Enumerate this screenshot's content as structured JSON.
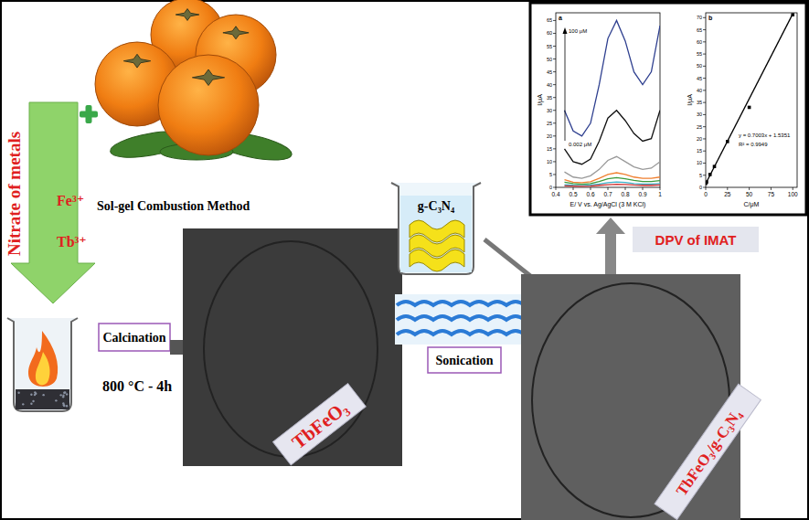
{
  "nodes": {
    "precursor_label": "Nitrate of metals",
    "ions": [
      "Fe³⁺",
      "Tb³⁺"
    ],
    "method": "Sol-gel Combustion Method",
    "step1": {
      "label": "Calcination",
      "condition": "800 °C - 4h"
    },
    "product1": "TbFeO₃",
    "additive": "g-C₃N₄",
    "step2": "Sonication",
    "product2": "TbFeO₃/g-C₃N₄",
    "application": "DPV of IMAT"
  },
  "chart_data": [
    {
      "type": "line",
      "title": "a",
      "x_label": "E/ V vs. Ag/AgCl (3 M KCl)",
      "y_label": "I/μA",
      "x": [
        0.45,
        0.5,
        0.55,
        0.6,
        0.65,
        0.7,
        0.75,
        0.8,
        0.85,
        0.9,
        0.95,
        1
      ],
      "xlim": [
        0.4,
        1
      ],
      "xticks": [
        0.4,
        0.5,
        0.6,
        0.7,
        0.8,
        0.9,
        1
      ],
      "ylim": [
        0,
        68
      ],
      "yticks": [
        0,
        5,
        10,
        15,
        20,
        25,
        30,
        35,
        40,
        45,
        50,
        55,
        60,
        65
      ],
      "annotations": [
        "100 μM",
        "0.002 μM"
      ],
      "series": [
        {
          "color": "#2e3f8f",
          "values": [
            30,
            22,
            20,
            25,
            40,
            58,
            65,
            57,
            45,
            40,
            45,
            63
          ]
        },
        {
          "color": "#111111",
          "values": [
            15,
            10,
            9,
            11,
            18,
            27,
            30,
            26,
            21,
            18,
            19,
            30
          ]
        },
        {
          "color": "#999999",
          "values": [
            6,
            4,
            3.5,
            4.5,
            7,
            10.5,
            12,
            10,
            8,
            7,
            7.5,
            10
          ]
        },
        {
          "color": "#f08030",
          "values": [
            3,
            2,
            1.8,
            2.2,
            3.5,
            5,
            5.7,
            5,
            4,
            3.5,
            3.5,
            4
          ]
        },
        {
          "color": "#3a9a3a",
          "values": [
            2,
            1.5,
            1.2,
            1.5,
            2.3,
            3.3,
            3.8,
            3.3,
            2.7,
            2.3,
            2.3,
            2.6
          ]
        },
        {
          "color": "#3bb0c9",
          "values": [
            1,
            0.8,
            0.7,
            0.9,
            1.3,
            1.8,
            2.1,
            1.9,
            1.5,
            1.3,
            1.3,
            1.5
          ]
        },
        {
          "color": "#d03030",
          "values": [
            0.6,
            0.5,
            0.4,
            0.5,
            0.8,
            1,
            1.2,
            1.1,
            0.9,
            0.8,
            0.8,
            0.9
          ]
        }
      ]
    },
    {
      "type": "scatter",
      "title": "b",
      "x_label": "C/μM",
      "y_label": "I/μA",
      "x": [
        0.002,
        1,
        5,
        10,
        25,
        50,
        100
      ],
      "xlim": [
        0,
        105
      ],
      "xticks": [
        0,
        25,
        50,
        75,
        100
      ],
      "ylim": [
        0,
        72
      ],
      "yticks": [
        0,
        5,
        10,
        15,
        20,
        25,
        30,
        35,
        40,
        45,
        50,
        55,
        60,
        65,
        70
      ],
      "annotations": [
        "y = 0.7003x + 1.5351",
        "R² = 0.9949"
      ],
      "series": [
        {
          "type": "scatter",
          "marker": "square",
          "color": "#000000",
          "values": [
            1.6,
            2.2,
            5.3,
            8.6,
            18.9,
            33,
            71.2
          ]
        },
        {
          "type": "line",
          "color": "#000000",
          "x": [
            0,
            100
          ],
          "values": [
            1.5351,
            71.5651
          ]
        }
      ]
    }
  ]
}
